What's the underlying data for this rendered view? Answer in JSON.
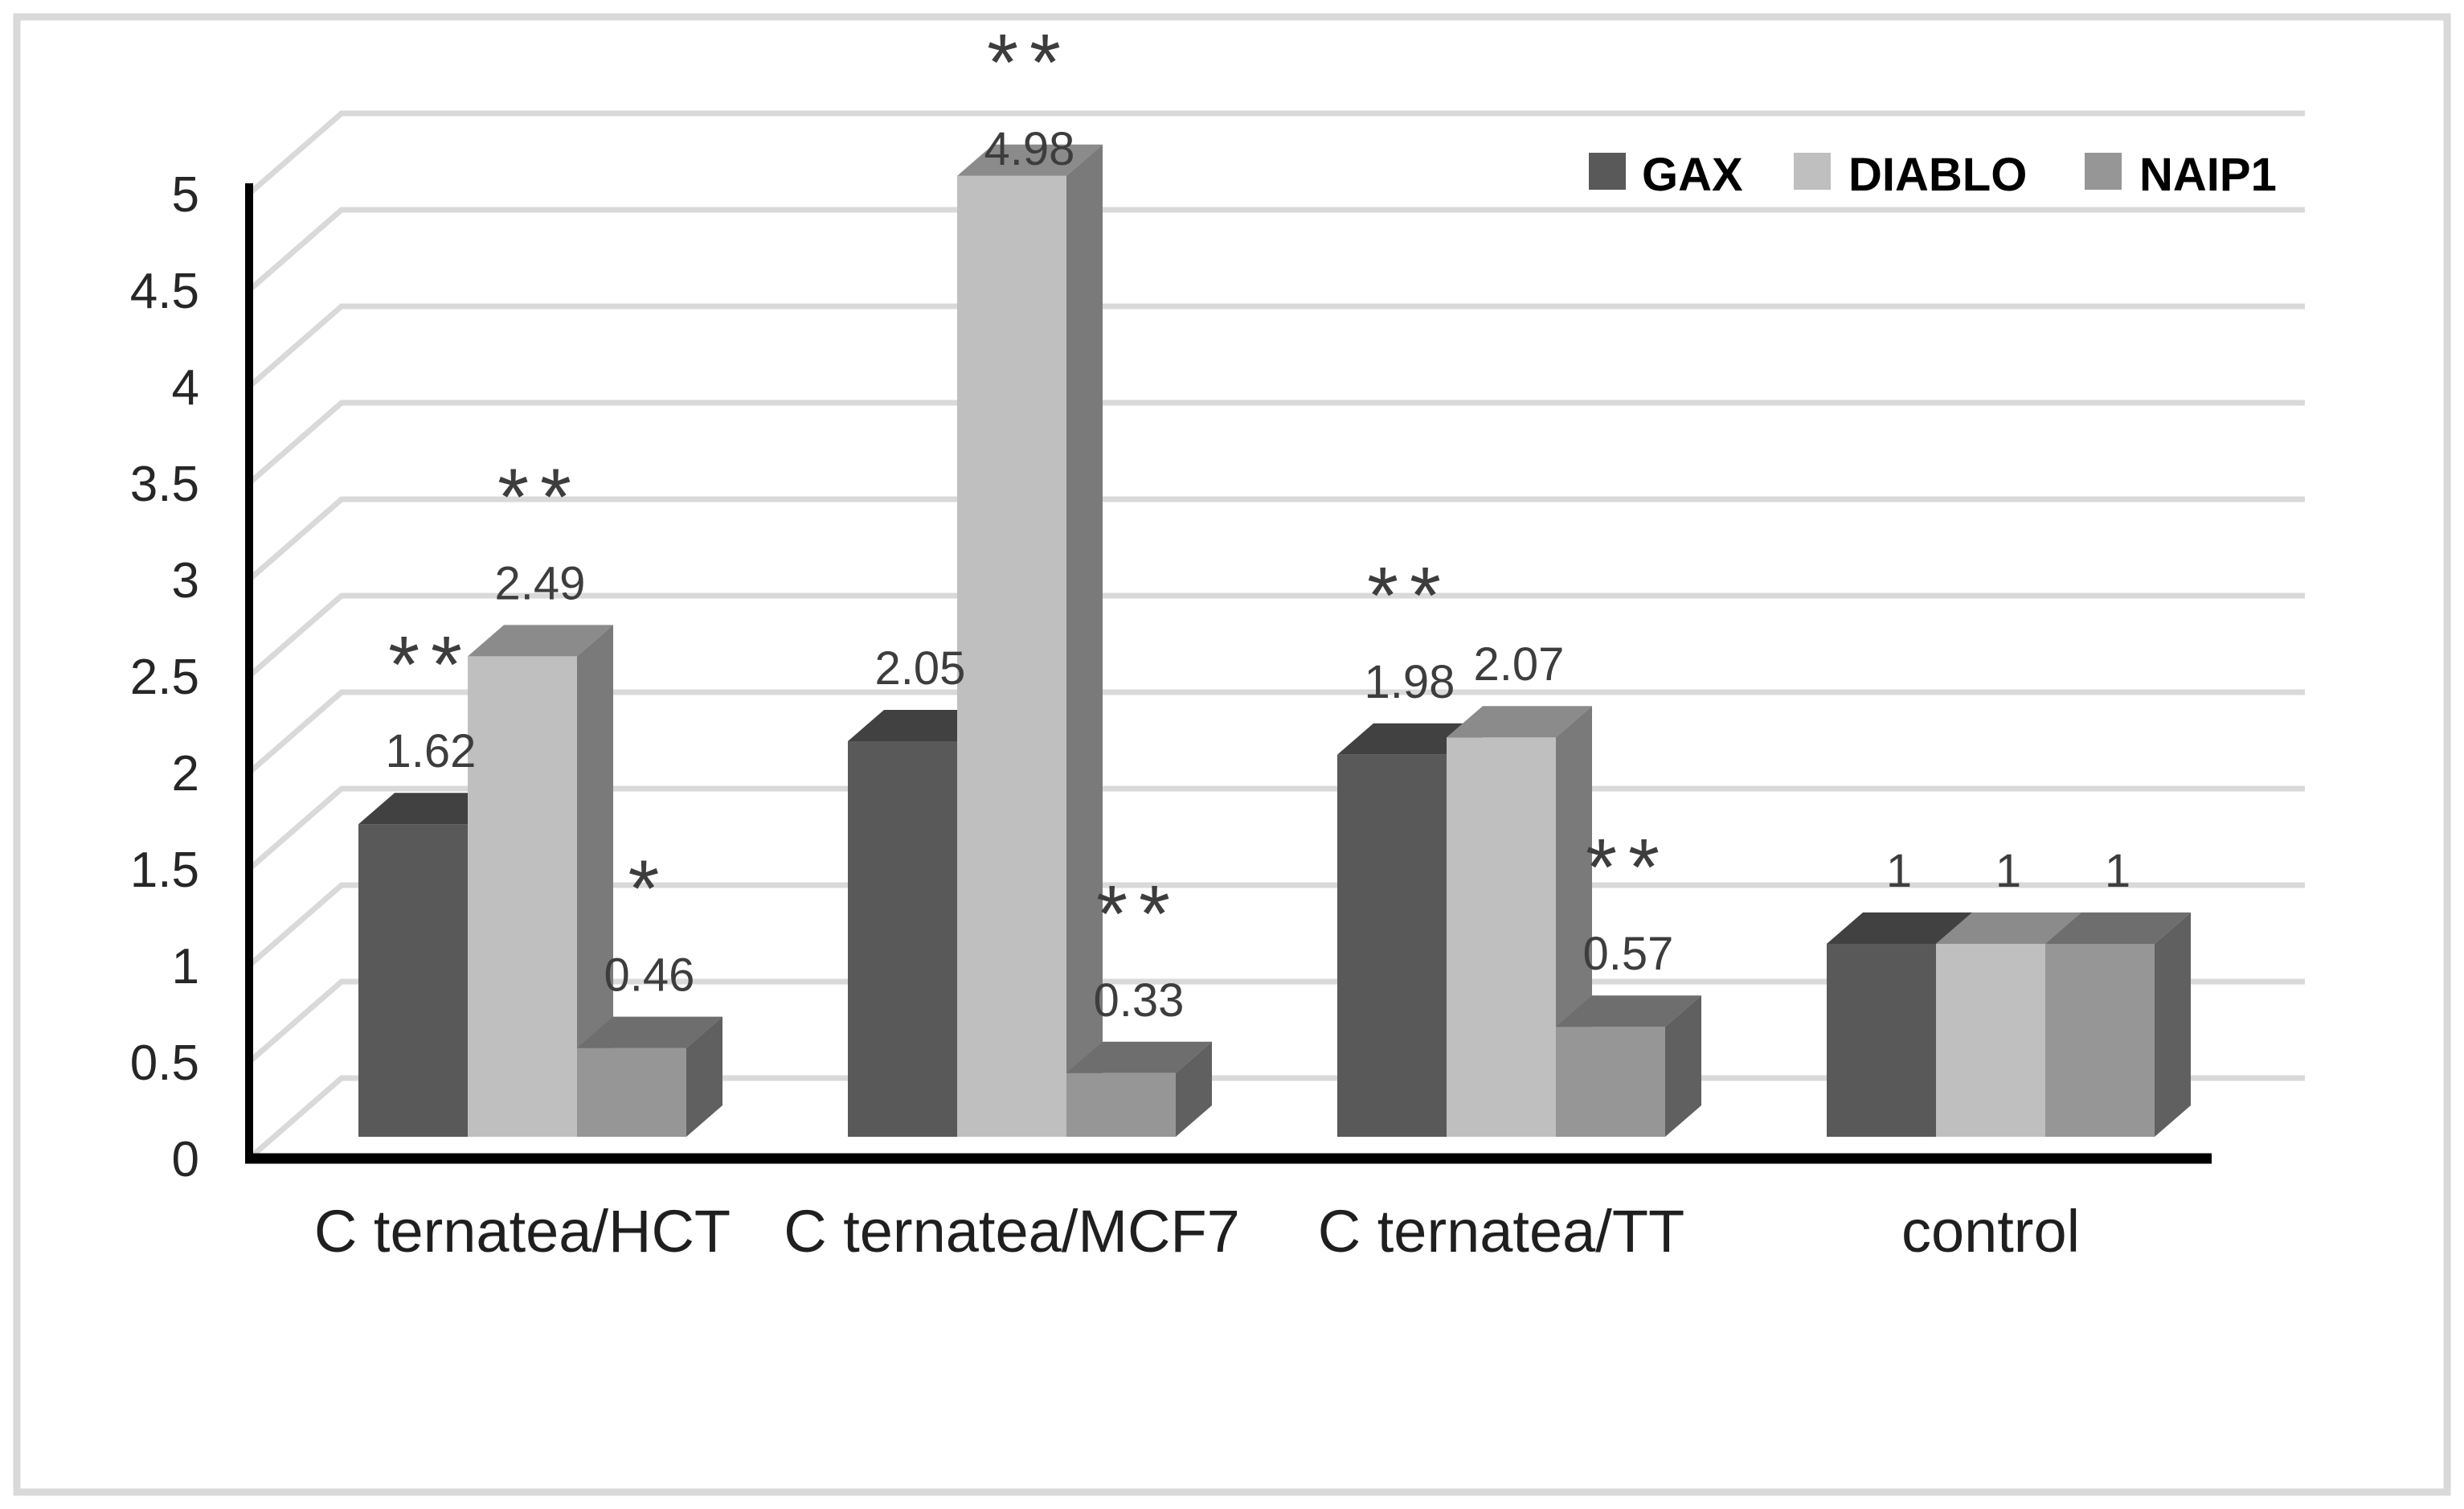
{
  "chart": {
    "background": "#ffffff",
    "border_color": "#d9d9d9",
    "axis_color": "#000000",
    "gridline_color": "#d9d9d9",
    "tick_label_color": "#262626",
    "category_label_color": "#1f1f1f",
    "value_label_color": "#3d3d3d",
    "significance_color": "#3d3d3d",
    "legend_text_color": "#000000"
  },
  "chart_data": {
    "type": "bar",
    "style": "3d-column",
    "title": "",
    "xlabel": "",
    "ylabel": "",
    "categories": [
      "C ternatea/HCT",
      "C ternatea/MCF7",
      "C ternatea/TT",
      "control"
    ],
    "series": [
      {
        "name": "GAX",
        "color": "#595959",
        "values": [
          1.62,
          2.05,
          1.98,
          1
        ],
        "labels": [
          "1.62",
          "2.05",
          "1.98",
          "1"
        ],
        "significance": [
          "**",
          "",
          "**",
          ""
        ]
      },
      {
        "name": "DIABLO",
        "color": "#bfbfbf",
        "values": [
          2.49,
          4.98,
          2.07,
          1
        ],
        "labels": [
          "2.49",
          "4.98",
          "2.07",
          "1"
        ],
        "significance": [
          "**",
          "**",
          "",
          ""
        ]
      },
      {
        "name": "NAIP1",
        "color": "#969696",
        "values": [
          0.46,
          0.33,
          0.57,
          1
        ],
        "labels": [
          "0.46",
          "0.33",
          "0.57",
          "1"
        ],
        "significance": [
          "*",
          "**",
          "**",
          ""
        ]
      }
    ],
    "ylim": [
      0,
      5
    ],
    "ytick_step": 0.5,
    "yticks": [
      "0",
      "0.5",
      "1",
      "1.5",
      "2",
      "2.5",
      "3",
      "3.5",
      "4",
      "4.5",
      "5"
    ],
    "grid": true,
    "legend_position": "top-right"
  }
}
